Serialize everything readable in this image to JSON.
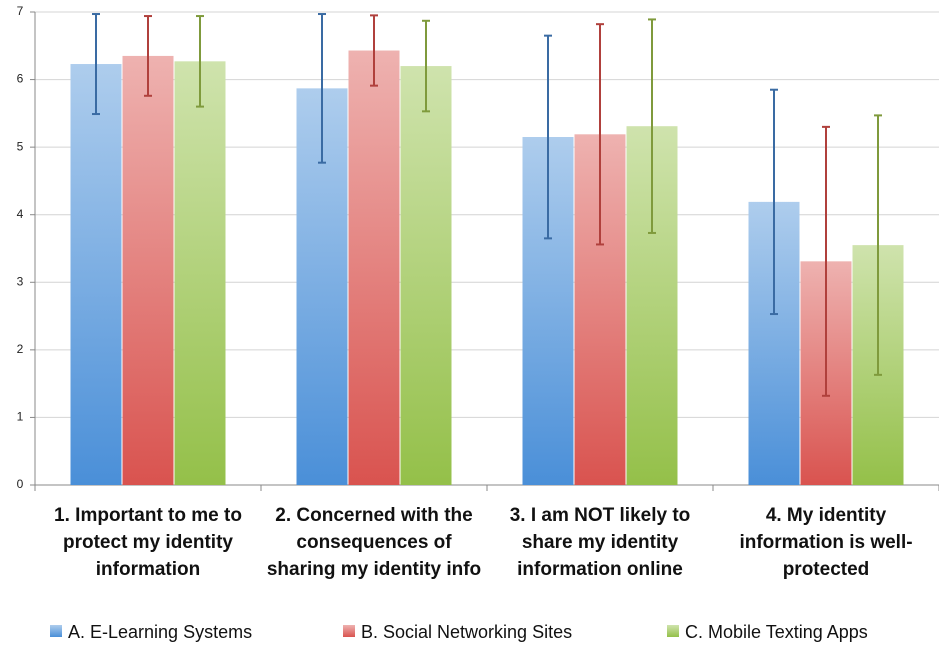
{
  "chart_data": {
    "type": "bar",
    "categories": [
      "1. Important to me to protect my identity information",
      "2. Concerned with the consequences of sharing my identity info",
      "3. I am NOT likely to share my identity information online",
      "4. My identity information is well-protected"
    ],
    "series": [
      {
        "name": "A. E-Learning Systems",
        "color": "#4a8fd8",
        "error_color": "#3a6ba3",
        "values": [
          6.23,
          5.87,
          5.15,
          4.19
        ],
        "errors": [
          0.74,
          1.1,
          1.5,
          1.66
        ]
      },
      {
        "name": "B. Social Networking Sites",
        "color": "#d9534f",
        "error_color": "#b0403c",
        "values": [
          6.35,
          6.43,
          5.19,
          3.31
        ],
        "errors": [
          0.59,
          0.52,
          1.63,
          1.99
        ]
      },
      {
        "name": "C. Mobile Texting Apps",
        "color": "#94c049",
        "error_color": "#7f9a3c",
        "values": [
          6.27,
          6.2,
          5.31,
          3.55
        ],
        "errors": [
          0.67,
          0.67,
          1.58,
          1.92
        ]
      }
    ],
    "ylim": [
      0,
      7
    ],
    "yticks": [
      0,
      1,
      2,
      3,
      4,
      5,
      6,
      7
    ],
    "grid": true,
    "legend": "bottom"
  }
}
